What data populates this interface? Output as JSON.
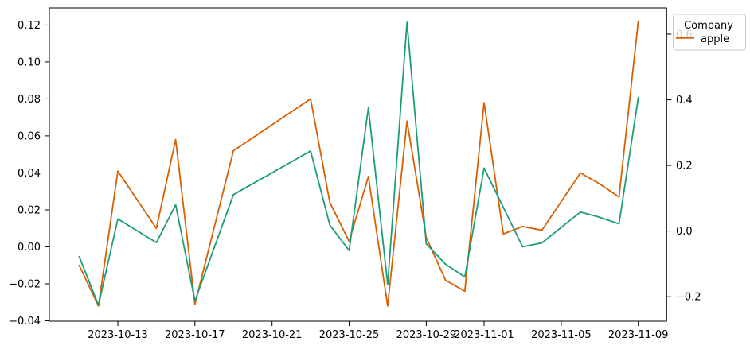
{
  "figure": {
    "background": "#ffffff"
  },
  "legend": {
    "title": "Company",
    "entries": [
      {
        "label": "apple",
        "color": "#d95f02"
      }
    ]
  },
  "chart_data": {
    "type": "line",
    "title": "",
    "xlabel": "",
    "ylabel": "",
    "grid": false,
    "legend_position": "upper-right-outside-plot",
    "x_axis": {
      "origin_date": "2023-10-13",
      "tick_labels": [
        "2023-10-13",
        "2023-10-17",
        "2023-10-21",
        "2023-10-25",
        "2023-10-29",
        "2023-11-01",
        "2023-11-05",
        "2023-11-09"
      ],
      "lim_day_offsets": [
        -3.55,
        28.47
      ]
    },
    "left_axis": {
      "tick_labels": [
        "−0.04",
        "−0.02",
        "0.00",
        "0.02",
        "0.04",
        "0.06",
        "0.08",
        "0.10",
        "0.12"
      ],
      "tick_values": [
        -0.04,
        -0.02,
        0.0,
        0.02,
        0.04,
        0.06,
        0.08,
        0.1,
        0.12
      ],
      "lim": [
        -0.0402,
        0.1292
      ]
    },
    "right_axis": {
      "tick_labels": [
        "−0.2",
        "0.0",
        "0.2",
        "0.4",
        "0.6"
      ],
      "tick_values": [
        -0.2,
        0.0,
        0.2,
        0.4,
        0.6
      ],
      "lim": [
        -0.2747,
        0.68
      ]
    },
    "dates": [
      "2023-10-11",
      "2023-10-12",
      "2023-10-13",
      "2023-10-15",
      "2023-10-16",
      "2023-10-17",
      "2023-10-19",
      "2023-10-23",
      "2023-10-24",
      "2023-10-25",
      "2023-10-26",
      "2023-10-27",
      "2023-10-28",
      "2023-10-29",
      "2023-10-30",
      "2023-10-31",
      "2023-11-01",
      "2023-11-02",
      "2023-11-03",
      "2023-11-04",
      "2023-11-06",
      "2023-11-07",
      "2023-11-08",
      "2023-11-09"
    ],
    "series": [
      {
        "name": "apple",
        "color": "#d95f02",
        "axis": "left",
        "in_legend": true,
        "values": [
          -0.01,
          -0.032,
          0.041,
          0.01,
          0.058,
          -0.031,
          0.052,
          0.08,
          0.024,
          0.003,
          0.038,
          -0.032,
          0.068,
          0.005,
          -0.018,
          -0.024,
          0.078,
          0.007,
          0.011,
          0.009,
          0.04,
          0.034,
          0.027,
          0.122
        ]
      },
      {
        "name": "",
        "color": "#1b9e77",
        "axis": "right",
        "in_legend": false,
        "values": [
          -0.078,
          -0.226,
          0.037,
          -0.035,
          0.08,
          -0.213,
          0.111,
          0.244,
          0.018,
          -0.059,
          0.376,
          -0.163,
          0.636,
          -0.039,
          -0.101,
          -0.14,
          0.192,
          0.072,
          -0.048,
          -0.036,
          0.058,
          0.042,
          0.022,
          0.407
        ]
      }
    ]
  }
}
